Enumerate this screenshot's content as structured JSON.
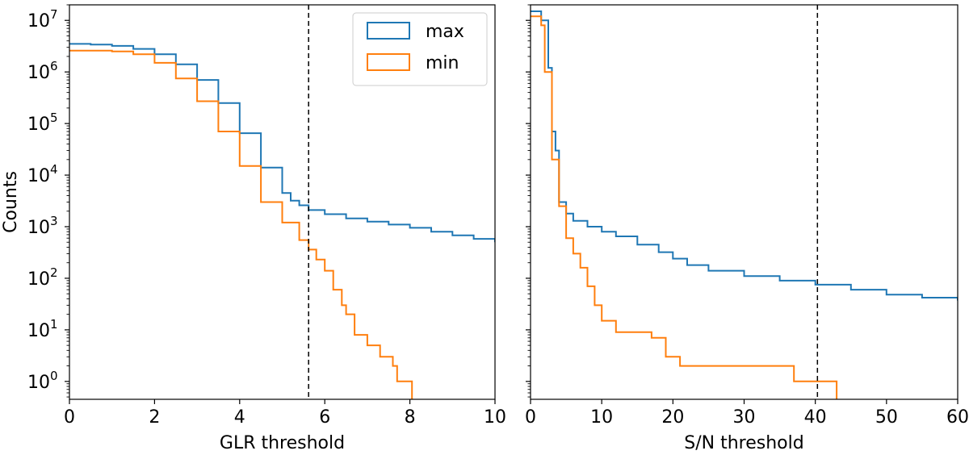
{
  "chart_data": [
    {
      "type": "line",
      "drawstyle": "step",
      "xlabel": "GLR threshold",
      "ylabel": "Counts",
      "xlim": [
        0,
        10
      ],
      "ylim": [
        0.45,
        20000000.0
      ],
      "yscale": "log",
      "x_ticks": [
        "0",
        "2",
        "4",
        "6",
        "8",
        "10"
      ],
      "y_ticks": [
        {
          "base": "10",
          "exp": "0"
        },
        {
          "base": "10",
          "exp": "1"
        },
        {
          "base": "10",
          "exp": "2"
        },
        {
          "base": "10",
          "exp": "3"
        },
        {
          "base": "10",
          "exp": "4"
        },
        {
          "base": "10",
          "exp": "5"
        },
        {
          "base": "10",
          "exp": "6"
        },
        {
          "base": "10",
          "exp": "7"
        }
      ],
      "vline_x": 5.62,
      "legend": {
        "placement": "top-right",
        "entries": [
          "max",
          "min"
        ]
      },
      "series": [
        {
          "name": "max",
          "color": "#1f77b4",
          "x": [
            0,
            0.5,
            1.0,
            1.5,
            2.0,
            2.5,
            3.0,
            3.5,
            4.0,
            4.5,
            5.0,
            5.2,
            5.4,
            5.62,
            6.0,
            6.5,
            7.0,
            7.5,
            8.0,
            8.5,
            9.0,
            9.5,
            10.0
          ],
          "y": [
            3500000.0,
            3400000.0,
            3200000.0,
            2800000.0,
            2200000.0,
            1400000.0,
            700000.0,
            250000.0,
            65000.0,
            14000.0,
            4500.0,
            3200.0,
            2600.0,
            2100.0,
            1750.0,
            1450.0,
            1250.0,
            1100.0,
            950.0,
            800.0,
            680.0,
            580.0,
            500.0
          ]
        },
        {
          "name": "min",
          "color": "#ff7f0e",
          "x": [
            0,
            0.5,
            1.0,
            1.5,
            2.0,
            2.5,
            3.0,
            3.5,
            4.0,
            4.5,
            5.0,
            5.4,
            5.62,
            5.8,
            6.0,
            6.2,
            6.4,
            6.5,
            6.7,
            7.0,
            7.3,
            7.6,
            7.7,
            8.0,
            8.05
          ],
          "y": [
            2600000.0,
            2600000.0,
            2500000.0,
            2200000.0,
            1500000.0,
            750000.0,
            270000.0,
            70000.0,
            15000.0,
            3000.0,
            1200.0,
            550.0,
            360.0,
            230.0,
            140.0,
            60.0,
            30.0,
            20.0,
            8,
            5,
            3,
            2,
            1,
            1,
            1
          ]
        }
      ]
    },
    {
      "type": "line",
      "drawstyle": "step",
      "xlabel": "S/N threshold",
      "ylabel": "",
      "xlim": [
        0,
        60
      ],
      "ylim": [
        0.45,
        20000000.0
      ],
      "yscale": "log",
      "x_ticks": [
        "0",
        "10",
        "20",
        "30",
        "40",
        "50",
        "60"
      ],
      "vline_x": 40.3,
      "series": [
        {
          "name": "max",
          "color": "#1f77b4",
          "x": [
            0,
            1.5,
            2.5,
            3.0,
            3.5,
            4.0,
            5.0,
            6.0,
            8.0,
            10.0,
            12.0,
            15.0,
            18.0,
            20.0,
            22.0,
            25.0,
            30.0,
            35.0,
            40.0,
            45.0,
            50.0,
            55.0,
            60.0
          ],
          "y": [
            15000000.0,
            10000000.0,
            1200000.0,
            70000.0,
            30000.0,
            3000.0,
            1800.0,
            1300.0,
            1000.0,
            800.0,
            650.0,
            450.0,
            320.0,
            240.0,
            180.0,
            140.0,
            110.0,
            90.0,
            75.0,
            60.0,
            48.0,
            42.0,
            37.0
          ]
        },
        {
          "name": "min",
          "color": "#ff7f0e",
          "x": [
            0,
            1.5,
            2.0,
            3.0,
            4.0,
            5.0,
            6.0,
            7.0,
            8.0,
            9.0,
            10.0,
            12.0,
            15.0,
            17.0,
            19.0,
            21.0,
            25.0,
            30.0,
            37.0,
            40.0,
            42.0,
            43.0
          ],
          "y": [
            12000000.0,
            8000000.0,
            1000000.0,
            20000.0,
            2500.0,
            600.0,
            300.0,
            160.0,
            70.0,
            30.0,
            15.0,
            9,
            9,
            7,
            3,
            2,
            2,
            2,
            1,
            1,
            1,
            0.5
          ]
        }
      ]
    }
  ]
}
